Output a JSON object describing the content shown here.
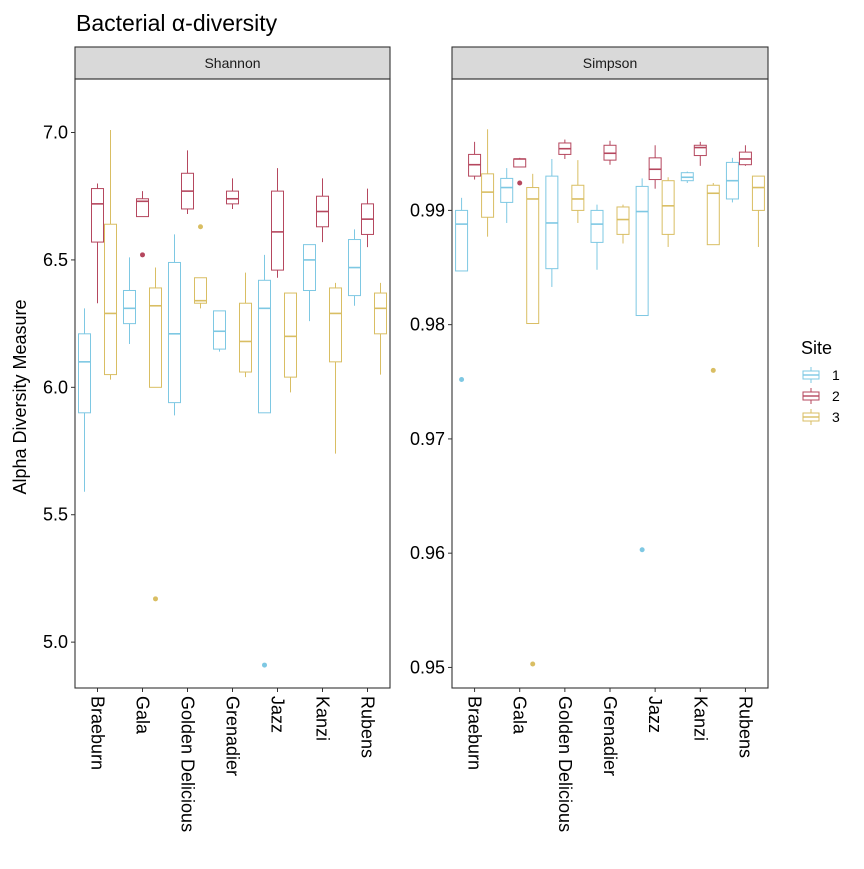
{
  "chart_data": {
    "type": "boxplot",
    "title": "Bacterial α-diversity",
    "ylabel": "Alpha Diversity Measure",
    "xlabel": "",
    "categories": [
      "Braeburn",
      "Gala",
      "Golden Delicious",
      "Grenadier",
      "Jazz",
      "Kanzi",
      "Rubens"
    ],
    "legend": {
      "title": "Site",
      "position": "right",
      "entries": [
        {
          "label": "1",
          "color": "#7EC8E3"
        },
        {
          "label": "2",
          "color": "#B5475E"
        },
        {
          "label": "3",
          "color": "#D9BE63"
        }
      ]
    },
    "panels": [
      {
        "strip": "Shannon",
        "ylim": [
          4.82,
          7.21
        ],
        "yticks": [
          5.0,
          5.5,
          6.0,
          6.5,
          7.0
        ],
        "ytick_labels": [
          "5.0",
          "5.5",
          "6.0",
          "6.5",
          "7.0"
        ],
        "groups": [
          {
            "category": "Braeburn",
            "site": "1",
            "whisker_low": 5.59,
            "q1": 5.9,
            "median": 6.1,
            "q3": 6.21,
            "whisker_high": 6.31,
            "outliers": []
          },
          {
            "category": "Braeburn",
            "site": "2",
            "whisker_low": 6.33,
            "q1": 6.57,
            "median": 6.72,
            "q3": 6.78,
            "whisker_high": 6.8,
            "outliers": []
          },
          {
            "category": "Braeburn",
            "site": "3",
            "whisker_low": 6.03,
            "q1": 6.05,
            "median": 6.29,
            "q3": 6.64,
            "whisker_high": 7.01,
            "outliers": []
          },
          {
            "category": "Gala",
            "site": "1",
            "whisker_low": 6.17,
            "q1": 6.25,
            "median": 6.31,
            "q3": 6.38,
            "whisker_high": 6.51,
            "outliers": []
          },
          {
            "category": "Gala",
            "site": "2",
            "whisker_low": 6.67,
            "q1": 6.67,
            "median": 6.73,
            "q3": 6.74,
            "whisker_high": 6.77,
            "outliers": [
              6.52
            ]
          },
          {
            "category": "Gala",
            "site": "3",
            "whisker_low": 6.0,
            "q1": 6.0,
            "median": 6.32,
            "q3": 6.39,
            "whisker_high": 6.47,
            "outliers": [
              5.17
            ]
          },
          {
            "category": "Golden Delicious",
            "site": "1",
            "whisker_low": 5.89,
            "q1": 5.94,
            "median": 6.21,
            "q3": 6.49,
            "whisker_high": 6.6,
            "outliers": []
          },
          {
            "category": "Golden Delicious",
            "site": "2",
            "whisker_low": 6.68,
            "q1": 6.7,
            "median": 6.77,
            "q3": 6.84,
            "whisker_high": 6.93,
            "outliers": []
          },
          {
            "category": "Golden Delicious",
            "site": "3",
            "whisker_low": 6.31,
            "q1": 6.33,
            "median": 6.34,
            "q3": 6.43,
            "whisker_high": 6.43,
            "outliers": [
              6.63
            ]
          },
          {
            "category": "Grenadier",
            "site": "1",
            "whisker_low": 6.14,
            "q1": 6.15,
            "median": 6.22,
            "q3": 6.3,
            "whisker_high": 6.3,
            "outliers": []
          },
          {
            "category": "Grenadier",
            "site": "2",
            "whisker_low": 6.7,
            "q1": 6.72,
            "median": 6.74,
            "q3": 6.77,
            "whisker_high": 6.82,
            "outliers": []
          },
          {
            "category": "Grenadier",
            "site": "3",
            "whisker_low": 6.04,
            "q1": 6.06,
            "median": 6.18,
            "q3": 6.33,
            "whisker_high": 6.45,
            "outliers": []
          },
          {
            "category": "Jazz",
            "site": "1",
            "whisker_low": 5.9,
            "q1": 5.9,
            "median": 6.31,
            "q3": 6.42,
            "whisker_high": 6.52,
            "outliers": [
              4.91
            ]
          },
          {
            "category": "Jazz",
            "site": "2",
            "whisker_low": 6.43,
            "q1": 6.46,
            "median": 6.61,
            "q3": 6.77,
            "whisker_high": 6.86,
            "outliers": []
          },
          {
            "category": "Jazz",
            "site": "3",
            "whisker_low": 5.98,
            "q1": 6.04,
            "median": 6.2,
            "q3": 6.37,
            "whisker_high": 6.37,
            "outliers": []
          },
          {
            "category": "Kanzi",
            "site": "1",
            "whisker_low": 6.26,
            "q1": 6.38,
            "median": 6.5,
            "q3": 6.56,
            "whisker_high": 6.56,
            "outliers": []
          },
          {
            "category": "Kanzi",
            "site": "2",
            "whisker_low": 6.57,
            "q1": 6.63,
            "median": 6.69,
            "q3": 6.75,
            "whisker_high": 6.82,
            "outliers": []
          },
          {
            "category": "Kanzi",
            "site": "3",
            "whisker_low": 5.74,
            "q1": 6.1,
            "median": 6.29,
            "q3": 6.39,
            "whisker_high": 6.41,
            "outliers": []
          },
          {
            "category": "Rubens",
            "site": "1",
            "whisker_low": 6.32,
            "q1": 6.36,
            "median": 6.47,
            "q3": 6.58,
            "whisker_high": 6.62,
            "outliers": []
          },
          {
            "category": "Rubens",
            "site": "2",
            "whisker_low": 6.55,
            "q1": 6.6,
            "median": 6.66,
            "q3": 6.72,
            "whisker_high": 6.78,
            "outliers": []
          },
          {
            "category": "Rubens",
            "site": "3",
            "whisker_low": 6.05,
            "q1": 6.21,
            "median": 6.31,
            "q3": 6.37,
            "whisker_high": 6.41,
            "outliers": []
          }
        ]
      },
      {
        "strip": "Simpson",
        "ylim": [
          0.9482,
          1.0015
        ],
        "yticks": [
          0.95,
          0.96,
          0.97,
          0.98,
          0.99
        ],
        "ytick_labels": [
          "0.95",
          "0.96",
          "0.97",
          "0.98",
          "0.99"
        ],
        "groups": [
          {
            "category": "Braeburn",
            "site": "1",
            "whisker_low": 0.9847,
            "q1": 0.9847,
            "median": 0.9888,
            "q3": 0.99,
            "whisker_high": 0.9911,
            "outliers": [
              0.9752
            ]
          },
          {
            "category": "Braeburn",
            "site": "2",
            "whisker_low": 0.9927,
            "q1": 0.993,
            "median": 0.994,
            "q3": 0.9949,
            "whisker_high": 0.996,
            "outliers": []
          },
          {
            "category": "Braeburn",
            "site": "3",
            "whisker_low": 0.9877,
            "q1": 0.9894,
            "median": 0.9916,
            "q3": 0.9932,
            "whisker_high": 0.9971,
            "outliers": []
          },
          {
            "category": "Gala",
            "site": "1",
            "whisker_low": 0.9889,
            "q1": 0.9907,
            "median": 0.992,
            "q3": 0.9928,
            "whisker_high": 0.9937,
            "outliers": []
          },
          {
            "category": "Gala",
            "site": "2",
            "whisker_low": 0.9938,
            "q1": 0.9938,
            "median": 0.9945,
            "q3": 0.9945,
            "whisker_high": 0.9946,
            "outliers": [
              0.9924
            ]
          },
          {
            "category": "Gala",
            "site": "3",
            "whisker_low": 0.9801,
            "q1": 0.9801,
            "median": 0.991,
            "q3": 0.992,
            "whisker_high": 0.9932,
            "outliers": [
              0.9503
            ]
          },
          {
            "category": "Golden Delicious",
            "site": "1",
            "whisker_low": 0.9833,
            "q1": 0.9849,
            "median": 0.9889,
            "q3": 0.993,
            "whisker_high": 0.9945,
            "outliers": []
          },
          {
            "category": "Golden Delicious",
            "site": "2",
            "whisker_low": 0.9945,
            "q1": 0.9949,
            "median": 0.9954,
            "q3": 0.9959,
            "whisker_high": 0.9962,
            "outliers": []
          },
          {
            "category": "Golden Delicious",
            "site": "3",
            "whisker_low": 0.9889,
            "q1": 0.99,
            "median": 0.991,
            "q3": 0.9922,
            "whisker_high": 0.9944,
            "outliers": []
          },
          {
            "category": "Grenadier",
            "site": "1",
            "whisker_low": 0.9848,
            "q1": 0.9872,
            "median": 0.9888,
            "q3": 0.99,
            "whisker_high": 0.9905,
            "outliers": []
          },
          {
            "category": "Grenadier",
            "site": "2",
            "whisker_low": 0.994,
            "q1": 0.9944,
            "median": 0.995,
            "q3": 0.9957,
            "whisker_high": 0.9961,
            "outliers": []
          },
          {
            "category": "Grenadier",
            "site": "3",
            "whisker_low": 0.9871,
            "q1": 0.9879,
            "median": 0.9892,
            "q3": 0.9903,
            "whisker_high": 0.9905,
            "outliers": []
          },
          {
            "category": "Jazz",
            "site": "1",
            "whisker_low": 0.9808,
            "q1": 0.9808,
            "median": 0.9899,
            "q3": 0.9921,
            "whisker_high": 0.9928,
            "outliers": [
              0.9603
            ]
          },
          {
            "category": "Jazz",
            "site": "2",
            "whisker_low": 0.9919,
            "q1": 0.9927,
            "median": 0.9936,
            "q3": 0.9946,
            "whisker_high": 0.9957,
            "outliers": []
          },
          {
            "category": "Jazz",
            "site": "3",
            "whisker_low": 0.9868,
            "q1": 0.9879,
            "median": 0.9904,
            "q3": 0.9926,
            "whisker_high": 0.9929,
            "outliers": []
          },
          {
            "category": "Kanzi",
            "site": "1",
            "whisker_low": 0.9924,
            "q1": 0.9926,
            "median": 0.9929,
            "q3": 0.9933,
            "whisker_high": 0.9934,
            "outliers": []
          },
          {
            "category": "Kanzi",
            "site": "2",
            "whisker_low": 0.9939,
            "q1": 0.9948,
            "median": 0.9955,
            "q3": 0.9957,
            "whisker_high": 0.996,
            "outliers": []
          },
          {
            "category": "Kanzi",
            "site": "3",
            "whisker_low": 0.987,
            "q1": 0.987,
            "median": 0.9915,
            "q3": 0.9922,
            "whisker_high": 0.9924,
            "outliers": [
              0.976
            ]
          },
          {
            "category": "Rubens",
            "site": "1",
            "whisker_low": 0.9907,
            "q1": 0.991,
            "median": 0.9926,
            "q3": 0.9942,
            "whisker_high": 0.9946,
            "outliers": []
          },
          {
            "category": "Rubens",
            "site": "2",
            "whisker_low": 0.9939,
            "q1": 0.994,
            "median": 0.9945,
            "q3": 0.9951,
            "whisker_high": 0.9957,
            "outliers": []
          },
          {
            "category": "Rubens",
            "site": "3",
            "whisker_low": 0.9868,
            "q1": 0.99,
            "median": 0.992,
            "q3": 0.993,
            "whisker_high": 0.993,
            "outliers": []
          }
        ]
      }
    ]
  }
}
